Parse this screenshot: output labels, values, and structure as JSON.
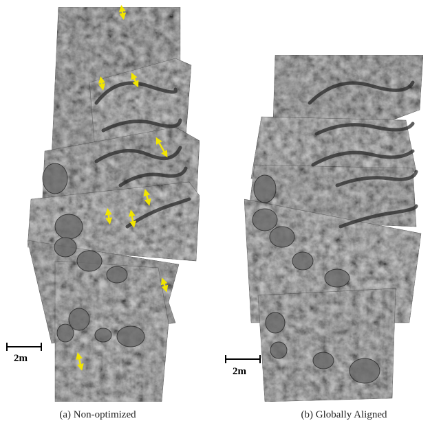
{
  "panels": [
    {
      "scale_label": "2m",
      "caption": "(a) Non-optimized"
    },
    {
      "scale_label": "2m",
      "caption": "(b) Globally Aligned"
    }
  ]
}
